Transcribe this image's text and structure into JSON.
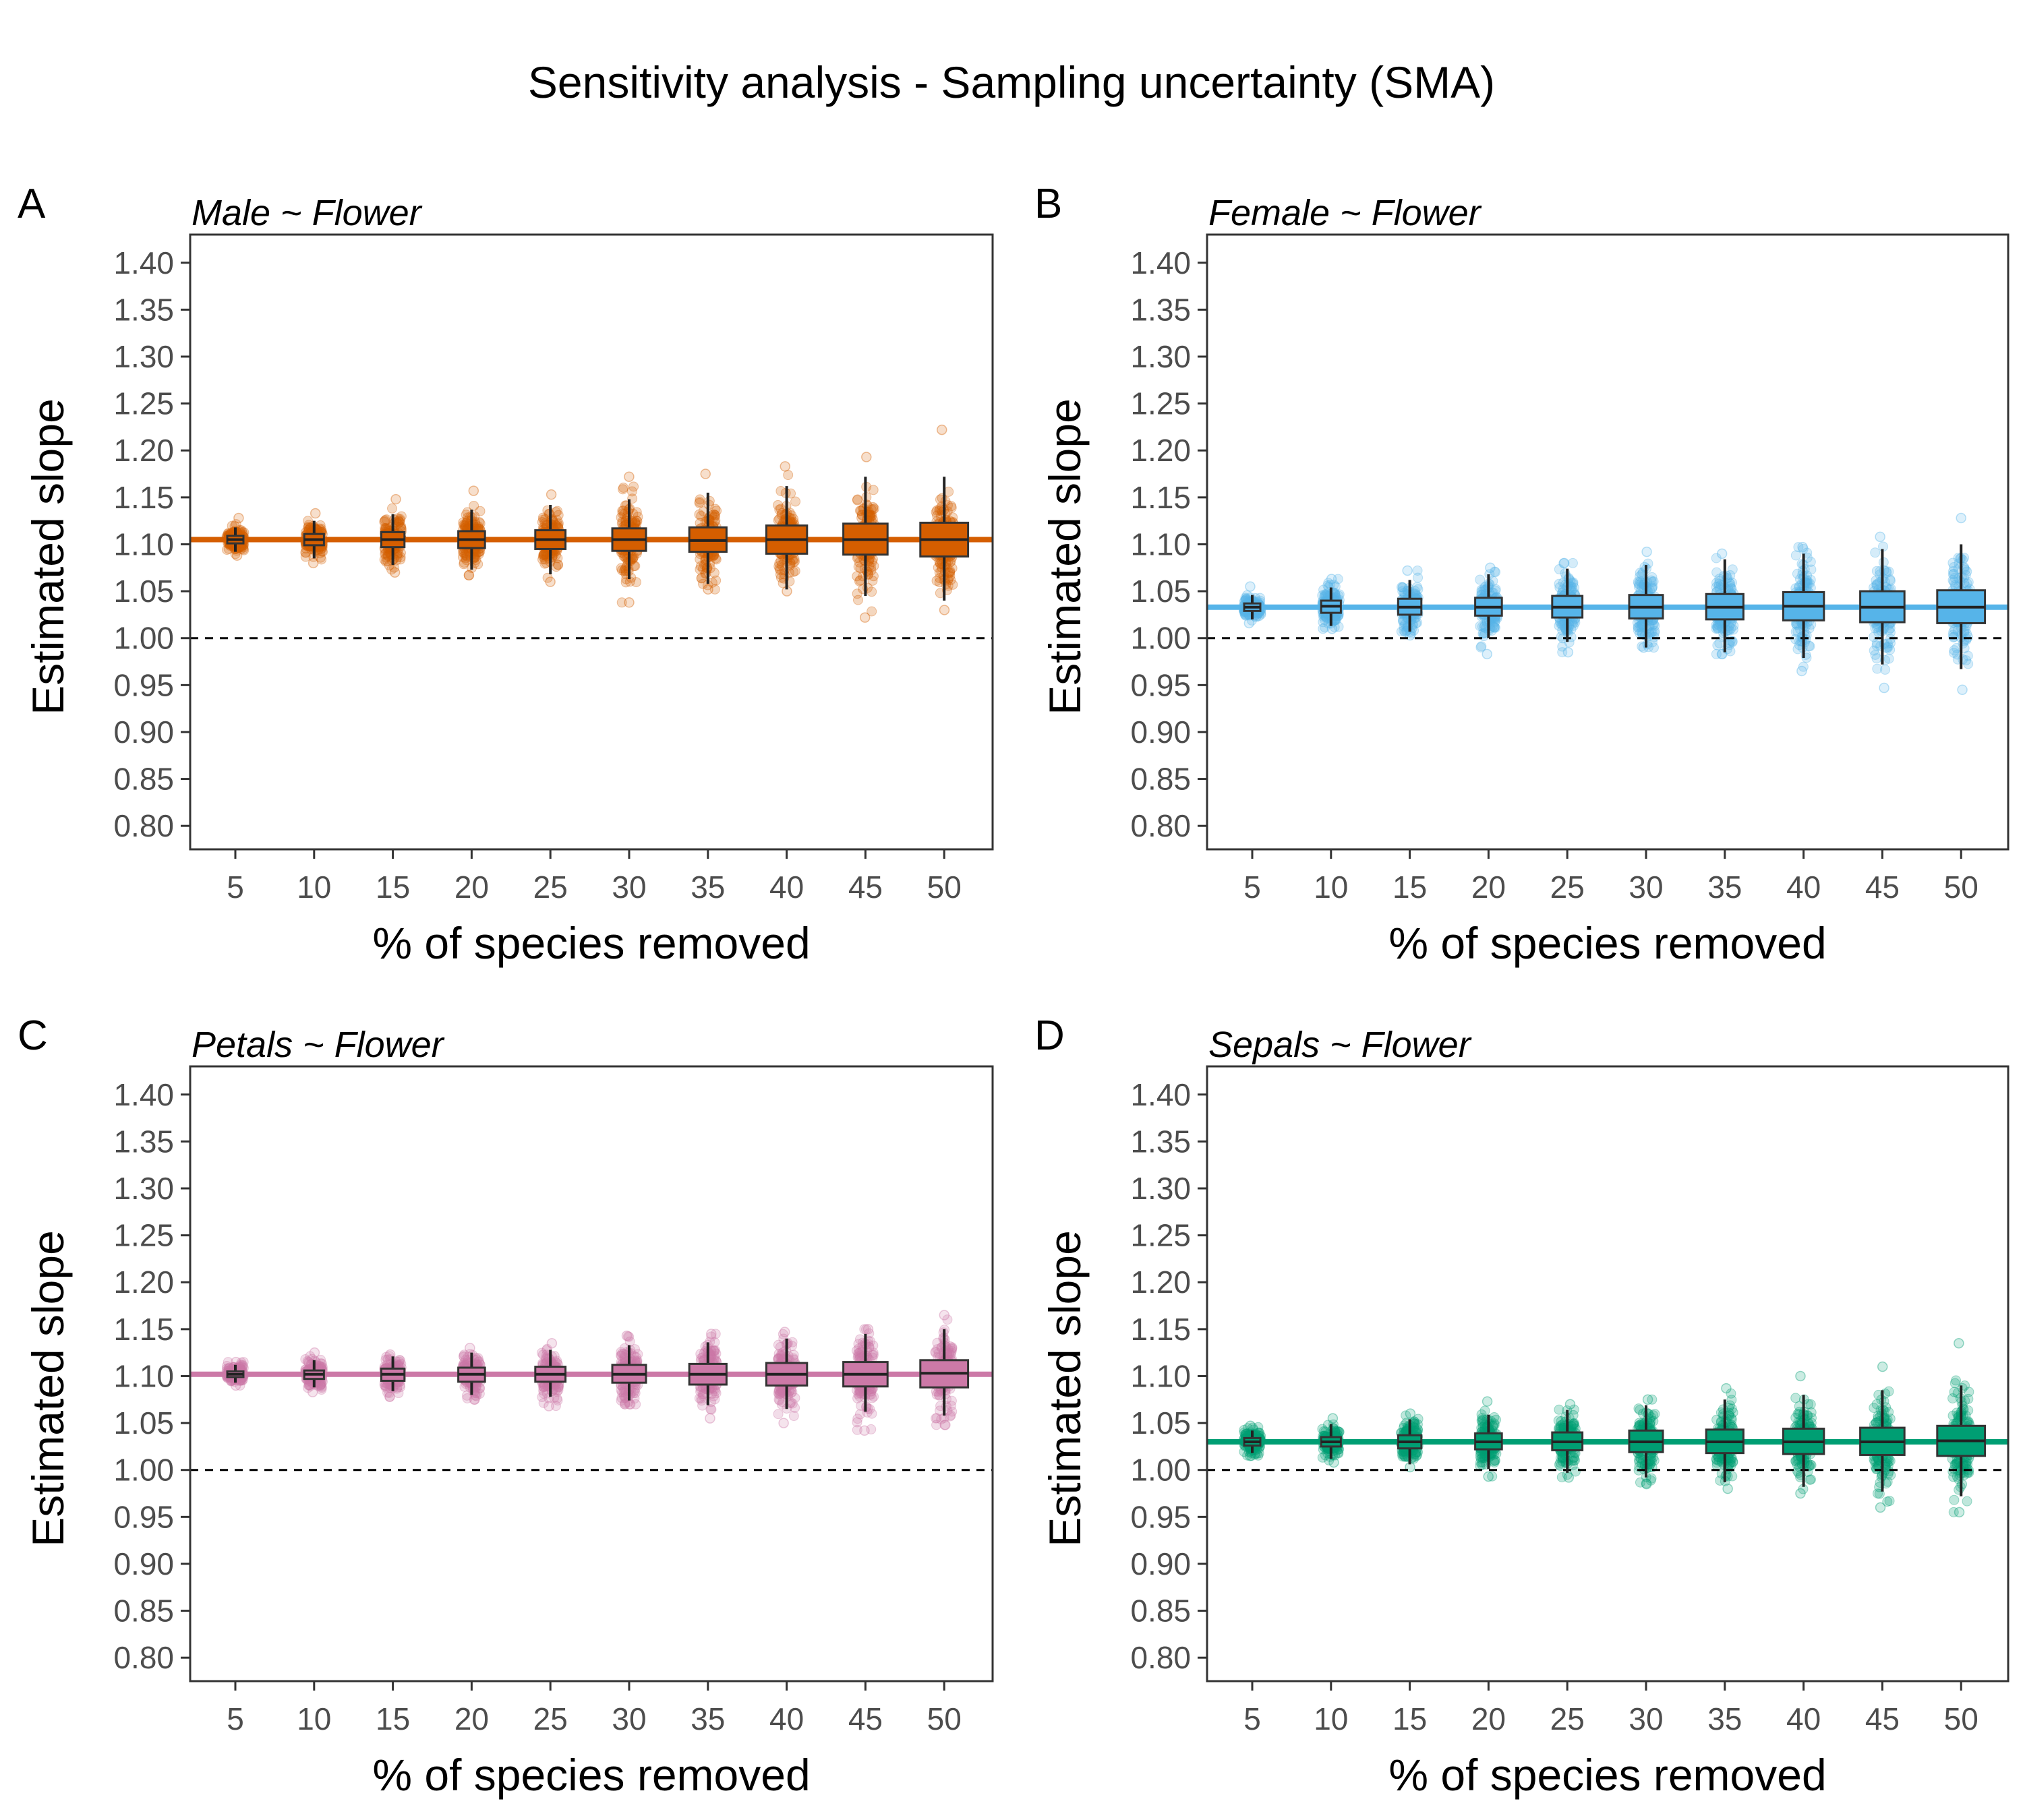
{
  "figure": {
    "title": "Sensitivity analysis - Sampling uncertainty (SMA)"
  },
  "axes_common": {
    "xlabel": "% of species removed",
    "ylabel": "Estimated slope",
    "x_ticks": [
      5,
      10,
      15,
      20,
      25,
      30,
      35,
      40,
      45,
      50
    ],
    "y_ticks": [
      "0.80",
      "0.85",
      "0.90",
      "0.95",
      "1.00",
      "1.05",
      "1.10",
      "1.15",
      "1.20",
      "1.25",
      "1.30",
      "1.35",
      "1.40"
    ],
    "ylim": [
      0.775,
      1.43
    ],
    "reference_line": 1.0
  },
  "chart_data": [
    {
      "panel": "A",
      "type": "scatter",
      "title": "Male ~ Flower",
      "color": "#D55E00",
      "xlabel": "% of species removed",
      "ylabel": "Estimated slope",
      "hline": 1.105,
      "x": [
        5,
        10,
        15,
        20,
        25,
        30,
        35,
        40,
        45,
        50
      ],
      "median": [
        1.105,
        1.105,
        1.105,
        1.105,
        1.105,
        1.105,
        1.104,
        1.105,
        1.105,
        1.105
      ],
      "q1": [
        1.101,
        1.099,
        1.097,
        1.096,
        1.095,
        1.093,
        1.092,
        1.09,
        1.089,
        1.087
      ],
      "q3": [
        1.109,
        1.111,
        1.113,
        1.114,
        1.115,
        1.117,
        1.118,
        1.12,
        1.122,
        1.123
      ],
      "whisker_low": [
        1.092,
        1.085,
        1.078,
        1.073,
        1.068,
        1.063,
        1.058,
        1.052,
        1.045,
        1.04
      ],
      "whisker_high": [
        1.118,
        1.125,
        1.132,
        1.137,
        1.142,
        1.148,
        1.155,
        1.162,
        1.172,
        1.172
      ],
      "min": [
        1.088,
        1.08,
        1.07,
        1.067,
        1.06,
        1.038,
        1.052,
        1.05,
        1.022,
        1.03
      ],
      "max": [
        1.128,
        1.133,
        1.148,
        1.157,
        1.153,
        1.172,
        1.175,
        1.183,
        1.193,
        1.222
      ]
    },
    {
      "panel": "B",
      "type": "scatter",
      "title": "Female ~ Flower",
      "color": "#56B4E9",
      "xlabel": "% of species removed",
      "ylabel": "Estimated slope",
      "hline": 1.033,
      "x": [
        5,
        10,
        15,
        20,
        25,
        30,
        35,
        40,
        45,
        50
      ],
      "median": [
        1.033,
        1.034,
        1.033,
        1.033,
        1.033,
        1.033,
        1.033,
        1.034,
        1.033,
        1.033
      ],
      "q1": [
        1.029,
        1.027,
        1.025,
        1.024,
        1.022,
        1.021,
        1.02,
        1.019,
        1.017,
        1.016
      ],
      "q3": [
        1.037,
        1.04,
        1.042,
        1.043,
        1.045,
        1.046,
        1.047,
        1.049,
        1.05,
        1.051
      ],
      "whisker_low": [
        1.02,
        1.013,
        1.007,
        1.0,
        0.996,
        0.99,
        0.985,
        0.979,
        0.972,
        0.967
      ],
      "whisker_high": [
        1.046,
        1.054,
        1.062,
        1.068,
        1.074,
        1.078,
        1.084,
        1.09,
        1.095,
        1.1
      ],
      "min": [
        1.016,
        1.01,
        1.003,
        0.983,
        0.985,
        0.99,
        0.983,
        0.965,
        0.947,
        0.945
      ],
      "max": [
        1.055,
        1.063,
        1.072,
        1.075,
        1.08,
        1.092,
        1.09,
        1.097,
        1.108,
        1.128
      ]
    },
    {
      "panel": "C",
      "type": "scatter",
      "title": "Petals ~ Flower",
      "color": "#CC79A7",
      "xlabel": "% of species removed",
      "ylabel": "Estimated slope",
      "hline": 1.102,
      "x": [
        5,
        10,
        15,
        20,
        25,
        30,
        35,
        40,
        45,
        50
      ],
      "median": [
        1.102,
        1.102,
        1.102,
        1.102,
        1.102,
        1.102,
        1.102,
        1.102,
        1.102,
        1.103
      ],
      "q1": [
        1.099,
        1.097,
        1.095,
        1.094,
        1.094,
        1.093,
        1.091,
        1.09,
        1.089,
        1.088
      ],
      "q3": [
        1.105,
        1.106,
        1.108,
        1.109,
        1.11,
        1.112,
        1.113,
        1.114,
        1.115,
        1.117
      ],
      "whisker_low": [
        1.093,
        1.088,
        1.084,
        1.08,
        1.078,
        1.074,
        1.069,
        1.065,
        1.062,
        1.058
      ],
      "whisker_high": [
        1.112,
        1.117,
        1.121,
        1.125,
        1.128,
        1.133,
        1.136,
        1.14,
        1.145,
        1.15
      ],
      "min": [
        1.09,
        1.083,
        1.078,
        1.075,
        1.068,
        1.07,
        1.055,
        1.05,
        1.042,
        1.048
      ],
      "max": [
        1.115,
        1.125,
        1.123,
        1.13,
        1.135,
        1.143,
        1.145,
        1.147,
        1.15,
        1.165
      ]
    },
    {
      "panel": "D",
      "type": "scatter",
      "title": "Sepals ~ Flower",
      "color": "#009E73",
      "xlabel": "% of species removed",
      "ylabel": "Estimated slope",
      "hline": 1.03,
      "x": [
        5,
        10,
        15,
        20,
        25,
        30,
        35,
        40,
        45,
        50
      ],
      "median": [
        1.03,
        1.03,
        1.03,
        1.03,
        1.03,
        1.03,
        1.03,
        1.03,
        1.03,
        1.031
      ],
      "q1": [
        1.026,
        1.025,
        1.023,
        1.022,
        1.021,
        1.019,
        1.018,
        1.017,
        1.016,
        1.015
      ],
      "q3": [
        1.034,
        1.035,
        1.037,
        1.039,
        1.04,
        1.042,
        1.043,
        1.044,
        1.045,
        1.047
      ],
      "whisker_low": [
        1.018,
        1.012,
        1.006,
        1.001,
        0.997,
        0.992,
        0.987,
        0.982,
        0.977,
        0.972
      ],
      "whisker_high": [
        1.042,
        1.049,
        1.054,
        1.059,
        1.064,
        1.069,
        1.075,
        1.08,
        1.085,
        1.09
      ],
      "min": [
        1.015,
        1.008,
        1.003,
        0.993,
        0.992,
        0.985,
        0.98,
        0.975,
        0.96,
        0.955
      ],
      "max": [
        1.047,
        1.055,
        1.06,
        1.073,
        1.07,
        1.075,
        1.087,
        1.1,
        1.11,
        1.135
      ]
    }
  ]
}
